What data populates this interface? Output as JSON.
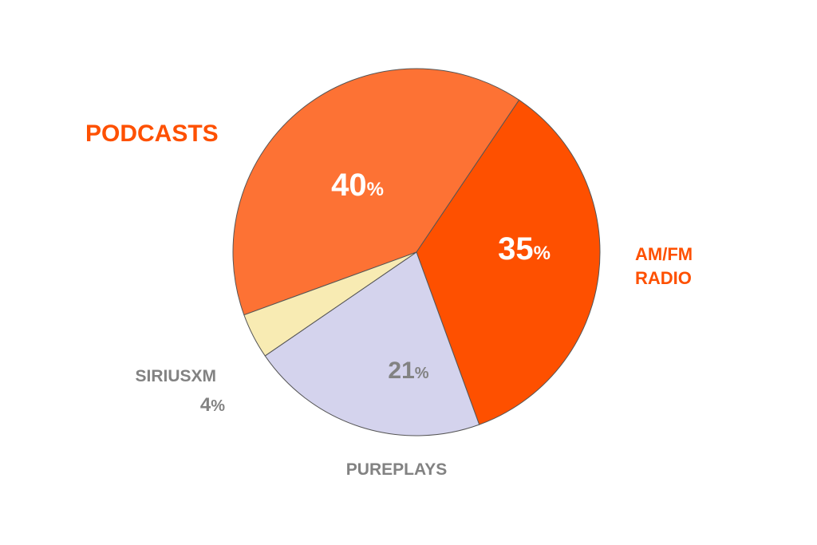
{
  "chart_data": {
    "type": "pie",
    "slices": [
      {
        "label": "PODCASTS",
        "value": 40,
        "value_label": "40",
        "color": "#fd7234"
      },
      {
        "label": "AM/FM RADIO",
        "label_lines": [
          "AM/FM",
          "RADIO"
        ],
        "value": 35,
        "value_label": "35",
        "color": "#fe5000"
      },
      {
        "label": "PUREPLAYS",
        "value": 21,
        "value_label": "21",
        "color": "#d4d3ed"
      },
      {
        "label": "SIRIUSXM",
        "value": 4,
        "value_label": "4",
        "color": "#f8ebb3"
      }
    ],
    "percent_sign": "%",
    "label_colors": {
      "orange": "#fe5000",
      "gray": "#828282",
      "white": "#ffffff"
    }
  }
}
